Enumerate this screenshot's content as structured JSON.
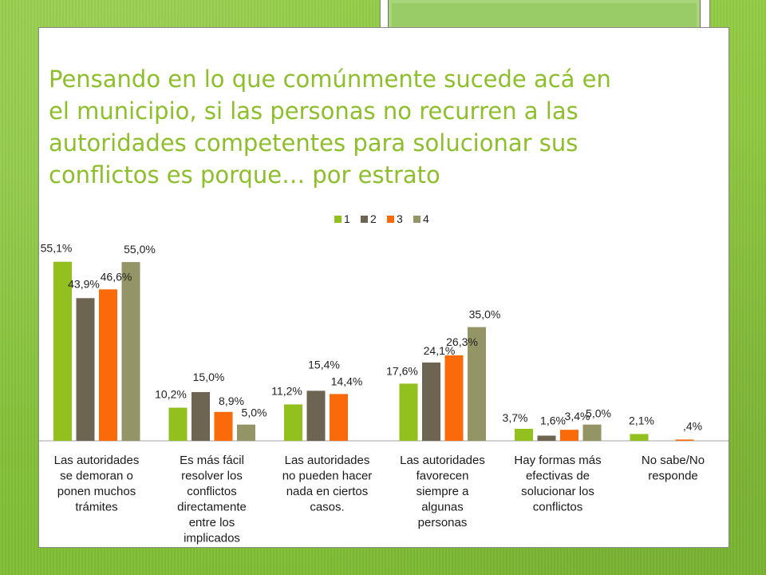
{
  "slide": {
    "title": "Pensando en lo que comúnmente sucede acá en\nel municipio, si las personas no recurren a las\nautoridades competentes para solucionar sus\nconflictos es porque… por estrato",
    "title_color": "#8cbf2a",
    "background_color": "#8cc63f"
  },
  "chart_data": {
    "type": "bar",
    "title": "Pensando en lo que comúnmente sucede acá en el municipio, si las personas no recurren a las autoridades competentes para solucionar sus conflictos es porque… por estrato",
    "xlabel": "",
    "ylabel": "",
    "ylim": [
      0,
      60
    ],
    "grid": false,
    "legend_position": "top-center",
    "categories": [
      [
        "Las autoridades",
        "se demoran o",
        "ponen muchos",
        "trámites"
      ],
      [
        "Es más fácil",
        "resolver los",
        "conflictos",
        "directamente",
        "entre los",
        "implicados"
      ],
      [
        "Las autoridades",
        "no pueden hacer",
        "nada en ciertos",
        "casos."
      ],
      [
        "Las autoridades",
        "favorecen",
        "siempre a",
        "algunas",
        "personas"
      ],
      [
        "Hay formas más",
        "efectivas de",
        "solucionar los",
        "conflictos"
      ],
      [
        "No sabe/No",
        "responde"
      ]
    ],
    "series": [
      {
        "name": "1",
        "color": "#92c01e",
        "values": [
          55.1,
          10.2,
          11.2,
          17.6,
          3.7,
          2.1
        ],
        "labels": [
          "55,1%",
          "10,2%",
          "11,2%",
          "17,6%",
          "3,7%",
          "2,1%"
        ]
      },
      {
        "name": "2",
        "color": "#6d6452",
        "values": [
          43.9,
          15.0,
          15.4,
          24.1,
          1.6,
          null
        ],
        "labels": [
          "43,9%",
          "15,0%",
          "15,4%",
          "24,1%",
          "1,6%",
          null
        ]
      },
      {
        "name": "3",
        "color": "#fa6a0a",
        "values": [
          46.6,
          8.9,
          14.4,
          26.3,
          3.4,
          0.4
        ],
        "labels": [
          "46,6%",
          "8,9%",
          "14,4%",
          "26,3%",
          "3,4%",
          ",4%"
        ]
      },
      {
        "name": "4",
        "color": "#939566",
        "values": [
          55.0,
          5.0,
          null,
          35.0,
          5.0,
          null
        ],
        "labels": [
          "55,0%",
          "5,0%",
          null,
          "35,0%",
          "5,0%",
          null
        ]
      }
    ]
  }
}
